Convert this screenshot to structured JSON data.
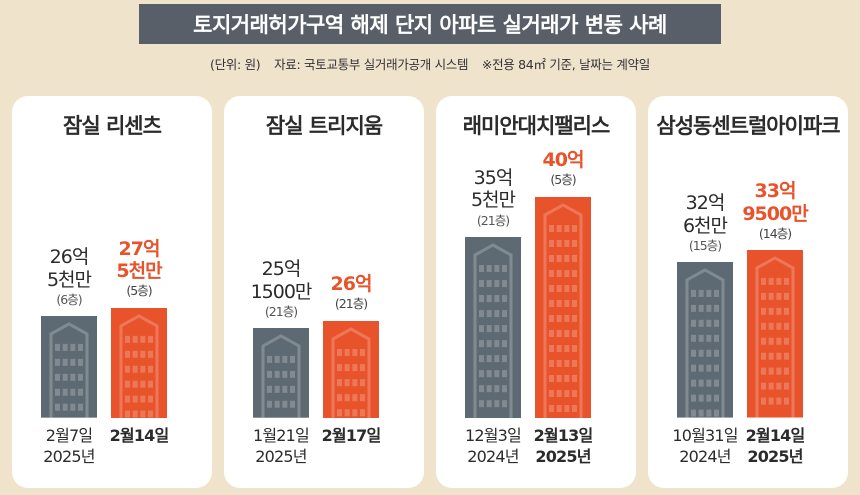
{
  "title": "토지거래허가구역 해제 단지 아파트 실거래가 변동 사례",
  "source": {
    "unit": "(단위: 원)",
    "origin": "자료: 국토교통부 실거래가공개 시스템",
    "note": "※전용 84㎡ 기준, 날짜는 계약일"
  },
  "colors": {
    "before": "#5e6a73",
    "after": "#e8532b",
    "background": "#efe3cc"
  },
  "chart_data": {
    "type": "bar",
    "unit": "원",
    "panels": [
      {
        "name": "잠실 리센츠",
        "bars": [
          {
            "label": "26억\n5천만",
            "value": 2650000000,
            "floor": "(6층)",
            "date": "2월7일\n2025년",
            "kind": "before"
          },
          {
            "label": "27억\n5천만",
            "value": 2750000000,
            "floor": "(5층)",
            "date": "2월14일",
            "kind": "after"
          }
        ]
      },
      {
        "name": "잠실 트리지움",
        "bars": [
          {
            "label": "25억\n1500만",
            "value": 2515000000,
            "floor": "(21층)",
            "date": "1월21일\n2025년",
            "kind": "before"
          },
          {
            "label": "26억",
            "value": 2600000000,
            "floor": "(21층)",
            "date": "2월17일",
            "kind": "after"
          }
        ]
      },
      {
        "name": "래미안대치팰리스",
        "bars": [
          {
            "label": "35억\n5천만",
            "value": 3550000000,
            "floor": "(21층)",
            "date": "12월3일\n2024년",
            "kind": "before"
          },
          {
            "label": "40억",
            "value": 4000000000,
            "floor": "(5층)",
            "date": "2월13일\n2025년",
            "kind": "after"
          }
        ]
      },
      {
        "name": "삼성동센트럴아이파크",
        "bars": [
          {
            "label": "32억\n6천만",
            "value": 3260000000,
            "floor": "(15층)",
            "date": "10월31일\n2024년",
            "kind": "before"
          },
          {
            "label": "33억\n9500만",
            "value": 3395000000,
            "floor": "(14층)",
            "date": "2월14일\n2025년",
            "kind": "after"
          }
        ]
      }
    ]
  }
}
